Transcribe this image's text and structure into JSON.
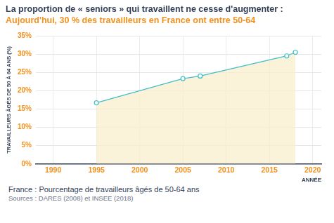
{
  "chart_data": {
    "type": "area",
    "title": "La proportion de « seniors » qui travaillent ne cesse d'augmenter :",
    "subtitle": "Aujourd'hui, 30 % des travailleurs en France ont entre 50-64",
    "x_label": "ANNÉE",
    "y_label": "TRAVAILLEURS ÂGÉS DE 50 À 64 ANS (%)",
    "caption": "France : Pourcentage de travailleurs âgés de 50-64 ans",
    "source": "Sources : DARES (2008) et INSEE (2018)",
    "x": [
      1995,
      2005,
      2007,
      2017,
      2018
    ],
    "values": [
      16.7,
      23.3,
      24.0,
      29.5,
      30.5
    ],
    "color": "#3fbfc8",
    "marker": "circle",
    "xlim": [
      1988,
      2021
    ],
    "xticks": [
      1990,
      1995,
      2000,
      2005,
      2010,
      2015,
      2020
    ],
    "ylim": [
      0,
      35
    ],
    "yticks": [
      {
        "value": 0,
        "label": "0%"
      },
      {
        "value": 5,
        "label": "5%"
      },
      {
        "value": 10,
        "label": "10%"
      },
      {
        "value": 15,
        "label": "15%"
      },
      {
        "value": 20,
        "label": "20%"
      },
      {
        "value": 25,
        "label": "25%"
      },
      {
        "value": 30,
        "label": "30%"
      },
      {
        "value": 35,
        "label": "35%"
      }
    ],
    "grid": true
  }
}
